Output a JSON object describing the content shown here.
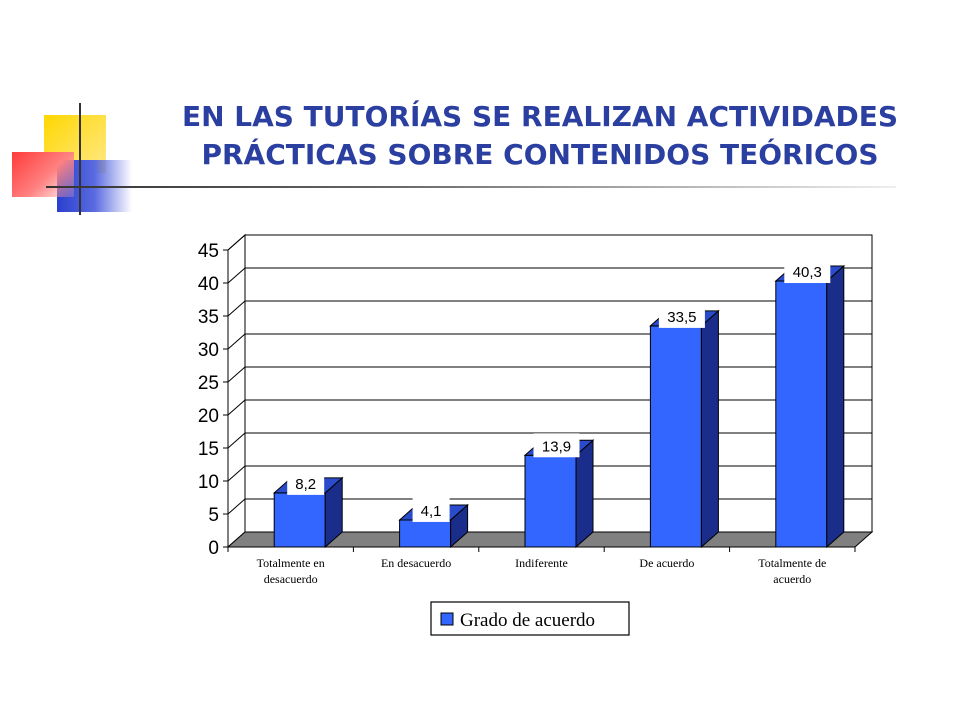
{
  "slide": {
    "title_line1": "EN LAS TUTORÍAS SE REALIZAN ACTIVIDADES",
    "title_line2": "PRÁCTICAS SOBRE CONTENIDOS TEÓRICOS"
  },
  "colors": {
    "title": "#2a3fa0",
    "bar_front": "#3366ff",
    "bar_side": "#1a2d8a",
    "bar_top": "#2a4ccc",
    "floor": "#808080"
  },
  "chart_data": {
    "type": "bar",
    "categories": [
      [
        "Totalmente en",
        "desacuerdo"
      ],
      [
        "En desacuerdo"
      ],
      [
        "Indiferente"
      ],
      [
        "De acuerdo"
      ],
      [
        "Totalmente de",
        "acuerdo"
      ]
    ],
    "series": [
      {
        "name": "Grado de acuerdo",
        "values": [
          8.2,
          4.1,
          13.9,
          33.5,
          40.3
        ]
      }
    ],
    "value_labels": [
      "8,2",
      "4,1",
      "13,9",
      "33,5",
      "40,3"
    ],
    "yticks": [
      0,
      5,
      10,
      15,
      20,
      25,
      30,
      35,
      40,
      45
    ],
    "ylim": [
      0,
      45
    ],
    "grid": true,
    "legend_position": "bottom"
  }
}
